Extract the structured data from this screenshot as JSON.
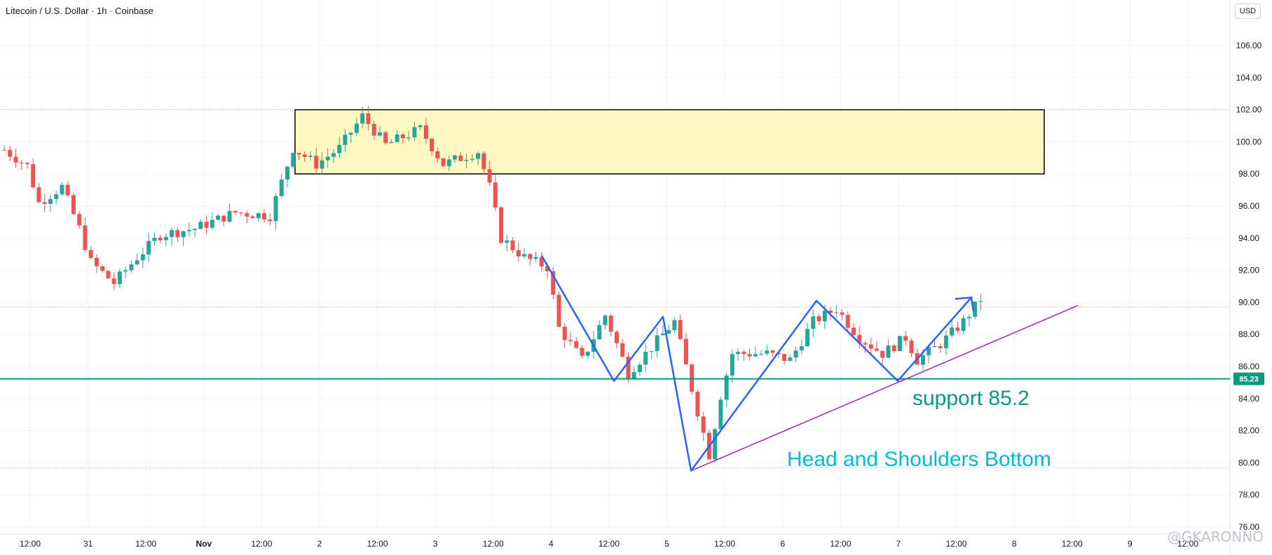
{
  "header": {
    "title": "Litecoin / U.S. Dollar · 1h · Coinbase",
    "currency": "USD"
  },
  "watermark": "@GKARONNO",
  "chart_data": {
    "type": "candlestick",
    "title": "Litecoin / U.S. Dollar · 1h · Coinbase",
    "ylim": [
      76,
      108
    ],
    "y_ticks": [
      76,
      78,
      80,
      82,
      84,
      86,
      88,
      90,
      92,
      94,
      96,
      98,
      100,
      102,
      104,
      106
    ],
    "x_ticks": [
      "12:00",
      "31",
      "12:00",
      "Nov",
      "12:00",
      "2",
      "12:00",
      "3",
      "12:00",
      "4",
      "12:00",
      "5",
      "12:00",
      "6",
      "12:00",
      "7",
      "12:00",
      "8",
      "12:00",
      "9",
      "12:00"
    ],
    "current_price_label": "85.23",
    "support_level": 85.23,
    "resistance_zone": [
      98,
      102
    ],
    "dotted_levels": [
      102,
      89.7,
      79.7
    ],
    "colors": {
      "up": "#26a69a",
      "down": "#ef5350",
      "pattern_line": "#2962ff",
      "trend_line": "#9c27b0",
      "support_line": "#089981",
      "zone_fill": "#fff9c4",
      "annotation_support": "#089981",
      "annotation_pattern": "#00bcd4"
    },
    "annotations": {
      "support": "support 85.2",
      "pattern": "Head and Shoulders Bottom"
    },
    "pattern_points": [
      {
        "slot": 0,
        "price": 92.9
      },
      {
        "slot": 1,
        "price": 85.1
      },
      {
        "slot": 2,
        "price": 89.1
      },
      {
        "slot": 3,
        "price": 79.5
      },
      {
        "slot": 4,
        "price": 90.1
      },
      {
        "slot": 5,
        "price": 85.1
      },
      {
        "slot": 6,
        "price": 90.3
      }
    ],
    "trend_line": [
      {
        "price": 79.5
      },
      {
        "price": 89.8
      }
    ],
    "price_path": [
      {
        "t": 0,
        "p": 99.5
      },
      {
        "t": 4,
        "p": 98.5
      },
      {
        "t": 6,
        "p": 96.2
      },
      {
        "t": 10,
        "p": 97.2
      },
      {
        "t": 13,
        "p": 94.6
      },
      {
        "t": 15,
        "p": 92.5
      },
      {
        "t": 19,
        "p": 91.2
      },
      {
        "t": 23,
        "p": 92.8
      },
      {
        "t": 27,
        "p": 94.2
      },
      {
        "t": 33,
        "p": 94.6
      },
      {
        "t": 40,
        "p": 95.6
      },
      {
        "t": 46,
        "p": 95.4
      },
      {
        "t": 50,
        "p": 99.6
      },
      {
        "t": 54,
        "p": 98.6
      },
      {
        "t": 58,
        "p": 99.6
      },
      {
        "t": 62,
        "p": 101.6
      },
      {
        "t": 66,
        "p": 99.8
      },
      {
        "t": 72,
        "p": 100.8
      },
      {
        "t": 76,
        "p": 98.6
      },
      {
        "t": 82,
        "p": 99.4
      },
      {
        "t": 84,
        "p": 97.2
      },
      {
        "t": 86,
        "p": 94.0
      },
      {
        "t": 90,
        "p": 92.8
      },
      {
        "t": 94,
        "p": 92.2
      },
      {
        "t": 96,
        "p": 88.4
      },
      {
        "t": 100,
        "p": 86.4
      },
      {
        "t": 104,
        "p": 89.2
      },
      {
        "t": 108,
        "p": 85.6
      },
      {
        "t": 112,
        "p": 87.2
      },
      {
        "t": 116,
        "p": 88.8
      },
      {
        "t": 120,
        "p": 83.2
      },
      {
        "t": 122,
        "p": 80.5
      },
      {
        "t": 124,
        "p": 84.2
      },
      {
        "t": 126,
        "p": 86.8
      },
      {
        "t": 132,
        "p": 86.8
      },
      {
        "t": 136,
        "p": 86.4
      },
      {
        "t": 140,
        "p": 88.8
      },
      {
        "t": 144,
        "p": 89.6
      },
      {
        "t": 148,
        "p": 87.8
      },
      {
        "t": 152,
        "p": 86.8
      },
      {
        "t": 156,
        "p": 87.8
      },
      {
        "t": 158,
        "p": 86.4
      },
      {
        "t": 162,
        "p": 87.4
      },
      {
        "t": 166,
        "p": 88.8
      },
      {
        "t": 169,
        "p": 90.2
      }
    ]
  }
}
